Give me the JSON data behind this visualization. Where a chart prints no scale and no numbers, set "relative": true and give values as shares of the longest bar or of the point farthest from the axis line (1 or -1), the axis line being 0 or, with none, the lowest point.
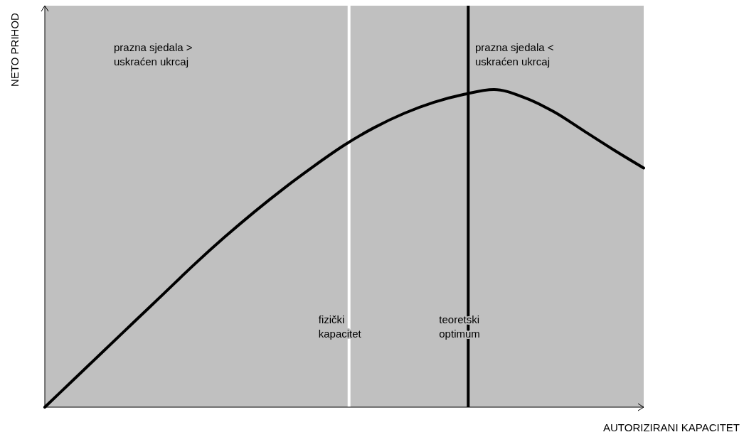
{
  "chart_data": {
    "type": "line",
    "relative": true,
    "xlabel": "AUTORIZIRANI KAPACITET",
    "ylabel": "NETO PRIHOD",
    "categories": [
      null,
      null,
      null,
      null,
      null,
      null,
      null,
      null,
      null,
      null,
      null,
      null,
      null,
      null,
      null,
      null,
      null,
      null,
      null,
      null,
      null
    ],
    "series": [
      {
        "color": "#000000",
        "values": [
          0,
          0.09,
          0.18,
          0.27,
          0.36,
          0.45,
          0.535,
          0.615,
          0.69,
          0.76,
          0.825,
          0.88,
          0.925,
          0.96,
          0.985,
          1,
          0.975,
          0.93,
          0.87,
          0.81,
          0.753
        ]
      }
    ],
    "annotations": [
      "prazna sjedala >\nuskraćen ukrcaj",
      "prazna sjedala <\nuskraćen ukrcaj",
      "fizički\nkapacitet",
      "teoretski\noptimum"
    ],
    "line_style": "solid"
  }
}
